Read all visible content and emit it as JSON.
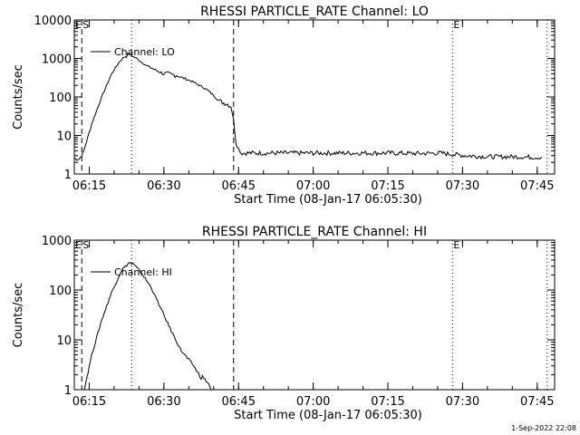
{
  "footer": {
    "timestamp": "1-Sep-2022 22:08"
  },
  "chart_data": [
    {
      "type": "line",
      "title": "RHESSI PARTICLE_RATE Channel: LO",
      "ylabel": "Counts/sec",
      "xlabel": "Start Time (08-Jan-17 06:05:30)",
      "yscale": "log",
      "ylim": [
        1,
        10000
      ],
      "xlim_minutes": [
        6.5,
        103.0
      ],
      "x_tick_labels": [
        "06:15",
        "06:30",
        "06:45",
        "07:00",
        "07:15",
        "07:30",
        "07:45"
      ],
      "x_tick_minutes": [
        9.5,
        24.5,
        39.5,
        54.5,
        69.5,
        84.5,
        99.5
      ],
      "y_tick_labels": [
        "1",
        "10",
        "100",
        "1000",
        "10000"
      ],
      "y_tick_values": [
        1,
        10,
        100,
        1000,
        10000
      ],
      "legend": {
        "label": "Channel: LO",
        "position": "top-left"
      },
      "markers": [
        {
          "label": "S",
          "x_minutes": 8.0,
          "style": "dashed"
        },
        {
          "label": "",
          "x_minutes": 18.0,
          "style": "dotted"
        },
        {
          "label": "",
          "x_minutes": 38.5,
          "style": "dashed"
        },
        {
          "label": "E",
          "x_minutes": 82.5,
          "style": "dotted"
        },
        {
          "label": "",
          "x_minutes": 101.5,
          "style": "dotted"
        }
      ],
      "series": [
        {
          "x_minutes": [
            6.5,
            7.5,
            8.0,
            8.4,
            10,
            12,
            14,
            15.5,
            16.5,
            17.5,
            19,
            21,
            24,
            27,
            30,
            33,
            34.5,
            35.5,
            36.5,
            37.3,
            38,
            38.5,
            39,
            40,
            45,
            50,
            55,
            60,
            65,
            70,
            75,
            80,
            85,
            90,
            95,
            100.5
          ],
          "y": [
            2.5,
            2.5,
            3,
            4,
            20,
            100,
            400,
            800,
            1100,
            1300,
            1000,
            650,
            420,
            360,
            260,
            160,
            110,
            80,
            70,
            65,
            55,
            25,
            6,
            3.5,
            3.5,
            3.5,
            3.5,
            3.5,
            3.5,
            3.5,
            3.4,
            3.5,
            3.0,
            2.8,
            2.8,
            2.7
          ]
        }
      ]
    },
    {
      "type": "line",
      "title": "RHESSI PARTICLE_RATE Channel: HI",
      "ylabel": "Counts/sec",
      "xlabel": "Start Time (08-Jan-17 06:05:30)",
      "yscale": "log",
      "ylim": [
        1,
        1000
      ],
      "xlim_minutes": [
        6.5,
        103.0
      ],
      "x_tick_labels": [
        "06:15",
        "06:30",
        "06:45",
        "07:00",
        "07:15",
        "07:30",
        "07:45"
      ],
      "x_tick_minutes": [
        9.5,
        24.5,
        39.5,
        54.5,
        69.5,
        84.5,
        99.5
      ],
      "y_tick_labels": [
        "1",
        "10",
        "100",
        "1000"
      ],
      "y_tick_values": [
        1,
        10,
        100,
        1000
      ],
      "legend": {
        "label": "Channel: HI",
        "position": "top-left"
      },
      "markers": [
        {
          "label": "S",
          "x_minutes": 8.0,
          "style": "dashed"
        },
        {
          "label": "",
          "x_minutes": 18.0,
          "style": "dotted"
        },
        {
          "label": "",
          "x_minutes": 38.5,
          "style": "dashed"
        },
        {
          "label": "E",
          "x_minutes": 82.5,
          "style": "dotted"
        },
        {
          "label": "",
          "x_minutes": 101.5,
          "style": "dotted"
        }
      ],
      "series": [
        {
          "x_minutes": [
            8.5,
            10,
            12,
            14,
            16,
            17.5,
            18.5,
            20,
            22,
            24,
            26,
            28,
            29.5,
            30.5,
            31.5,
            32.5,
            33.5,
            34
          ],
          "y": [
            1,
            5,
            25,
            90,
            250,
            350,
            320,
            220,
            110,
            40,
            15,
            6,
            4,
            3,
            2,
            1.7,
            1.3,
            1
          ]
        }
      ]
    }
  ]
}
